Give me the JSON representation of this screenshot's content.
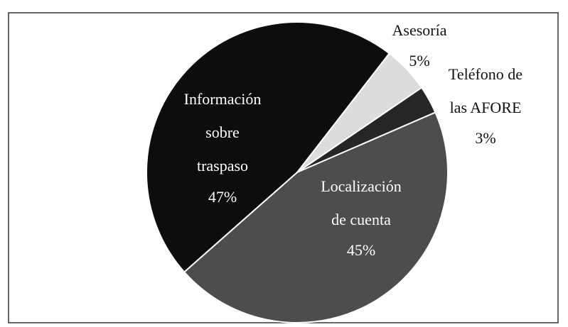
{
  "chart_data": {
    "type": "pie",
    "categories": [
      "Asesoría",
      "Teléfono de\nlas AFORE",
      "Localización\nde cuenta",
      "Información\nsobre\ntraspaso"
    ],
    "values": [
      5,
      3,
      45,
      47
    ],
    "value_labels": [
      "5%",
      "3%",
      "45%",
      "47%"
    ],
    "colors": [
      "#dcdcdc",
      "#262626",
      "#4d4d4d",
      "#0d0d0d"
    ]
  }
}
